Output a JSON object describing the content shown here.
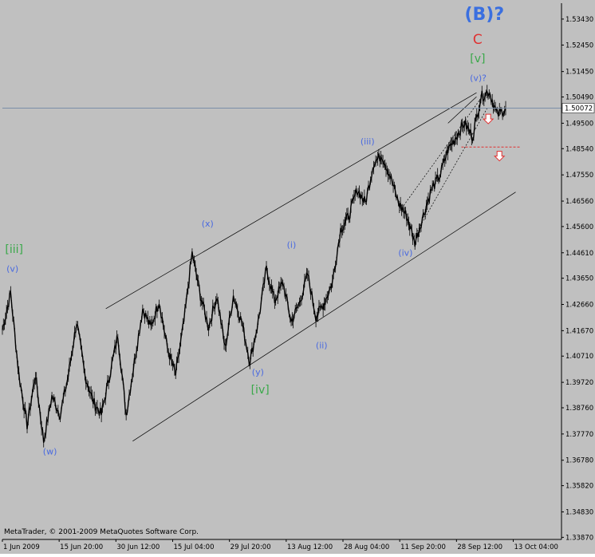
{
  "colors": {
    "background": "#c0c0c0",
    "plot_area": "#c0c0c0",
    "price_bars": "#000000",
    "channel_lines": "#000000",
    "current_price_line": "#7a8ea8",
    "wave_blue": "#4a6ae0",
    "wave_green": "#3aa84a",
    "wave_red": "#e03030",
    "title_blue": "#3a6fe0"
  },
  "footer": {
    "copyright": "MetaTrader, © 2001-2009 MetaQuotes Software Corp."
  },
  "chart_data": {
    "type": "line",
    "title": "",
    "xlabel": "",
    "ylabel": "",
    "ylim": [
      1.3379,
      1.5403
    ],
    "y_axis_side": "right",
    "grid": false,
    "current_price": 1.5007,
    "current_price_label": "1.50072",
    "y_ticks": [
      "1.53430",
      "1.52450",
      "1.51450",
      "1.50490",
      "1.49500",
      "1.48540",
      "1.47550",
      "1.46560",
      "1.45600",
      "1.44610",
      "1.43650",
      "1.42660",
      "1.41670",
      "1.40710",
      "1.39720",
      "1.38760",
      "1.37770",
      "1.36780",
      "1.35820",
      "1.34830",
      "1.33870"
    ],
    "x_ticks": [
      "1 Jun 2009",
      "15 Jun 20:00",
      "30 Jun 12:00",
      "15 Jul 04:00",
      "29 Jul 20:00",
      "13 Aug 12:00",
      "28 Aug 04:00",
      "11 Sep 20:00",
      "28 Sep 12:00",
      "13 Oct 04:00"
    ],
    "series": [
      {
        "values": [
          1.417,
          1.431,
          1.4,
          1.381,
          1.4,
          1.375,
          1.392,
          1.385,
          1.4,
          1.42,
          1.4,
          1.39,
          1.385,
          1.4,
          1.415,
          1.385,
          1.405,
          1.425,
          1.418,
          1.428,
          1.41,
          1.4,
          1.42,
          1.446,
          1.43,
          1.418,
          1.43,
          1.41,
          1.43,
          1.42,
          1.405,
          1.42,
          1.44,
          1.428,
          1.435,
          1.42,
          1.427,
          1.438,
          1.422,
          1.427,
          1.435,
          1.455,
          1.46,
          1.47,
          1.465,
          1.48,
          1.483,
          1.475,
          1.465,
          1.46,
          1.45,
          1.46,
          1.47,
          1.475,
          1.485,
          1.49,
          1.495,
          1.49,
          1.505,
          1.507,
          1.498,
          1.5007
        ]
      }
    ],
    "channel_lines": [
      {
        "x": [
          0.185,
          0.848
        ],
        "y": [
          1.425,
          1.5065
        ],
        "style": "solid"
      },
      {
        "x": [
          0.233,
          0.918
        ],
        "y": [
          1.375,
          1.469
        ],
        "style": "solid"
      },
      {
        "x": [
          0.711,
          0.858
        ],
        "y": [
          1.462,
          1.505
        ],
        "style": "dotted"
      },
      {
        "x": [
          0.736,
          0.868
        ],
        "y": [
          1.452,
          1.501
        ],
        "style": "dotted"
      },
      {
        "x": [
          0.797,
          0.848
        ],
        "y": [
          1.495,
          1.505
        ],
        "style": "solid"
      }
    ],
    "target_line": {
      "from_x": 0.821,
      "to_x": 0.927,
      "y": 1.486,
      "style": "dashed"
    },
    "annotations": [
      {
        "text": "(B)?",
        "x": 0.862,
        "y": 1.534,
        "color": "title_blue",
        "size": "xlarge"
      },
      {
        "text": "C",
        "x": 0.85,
        "y": 1.525,
        "color": "wave_red",
        "size": "large"
      },
      {
        "text": "[v]",
        "x": 0.85,
        "y": 1.518,
        "color": "wave_green",
        "size": "medium"
      },
      {
        "text": "(v)?",
        "x": 0.851,
        "y": 1.511,
        "color": "wave_blue",
        "size": "small"
      },
      {
        "text": "(iii)",
        "x": 0.653,
        "y": 1.487,
        "color": "wave_blue",
        "size": "small"
      },
      {
        "text": "(iv)",
        "x": 0.721,
        "y": 1.445,
        "color": "wave_blue",
        "size": "small"
      },
      {
        "text": "(x)",
        "x": 0.367,
        "y": 1.456,
        "color": "wave_blue",
        "size": "small"
      },
      {
        "text": "(i)",
        "x": 0.517,
        "y": 1.448,
        "color": "wave_blue",
        "size": "small"
      },
      {
        "text": "(ii)",
        "x": 0.571,
        "y": 1.41,
        "color": "wave_blue",
        "size": "small"
      },
      {
        "text": "(y)",
        "x": 0.457,
        "y": 1.4,
        "color": "wave_blue",
        "size": "small"
      },
      {
        "text": "[iv]",
        "x": 0.461,
        "y": 1.393,
        "color": "wave_green",
        "size": "medium"
      },
      {
        "text": "(w)",
        "x": 0.085,
        "y": 1.37,
        "color": "wave_blue",
        "size": "small"
      },
      {
        "text": "[iii]",
        "x": 0.021,
        "y": 1.446,
        "color": "wave_green",
        "size": "medium"
      },
      {
        "text": "(v)",
        "x": 0.018,
        "y": 1.439,
        "color": "wave_blue",
        "size": "small"
      }
    ],
    "arrows": [
      {
        "direction": "down",
        "x": 0.869,
        "y": 1.496,
        "color": "wave_red"
      },
      {
        "direction": "down",
        "x": 0.889,
        "y": 1.482,
        "color": "wave_red"
      }
    ]
  }
}
